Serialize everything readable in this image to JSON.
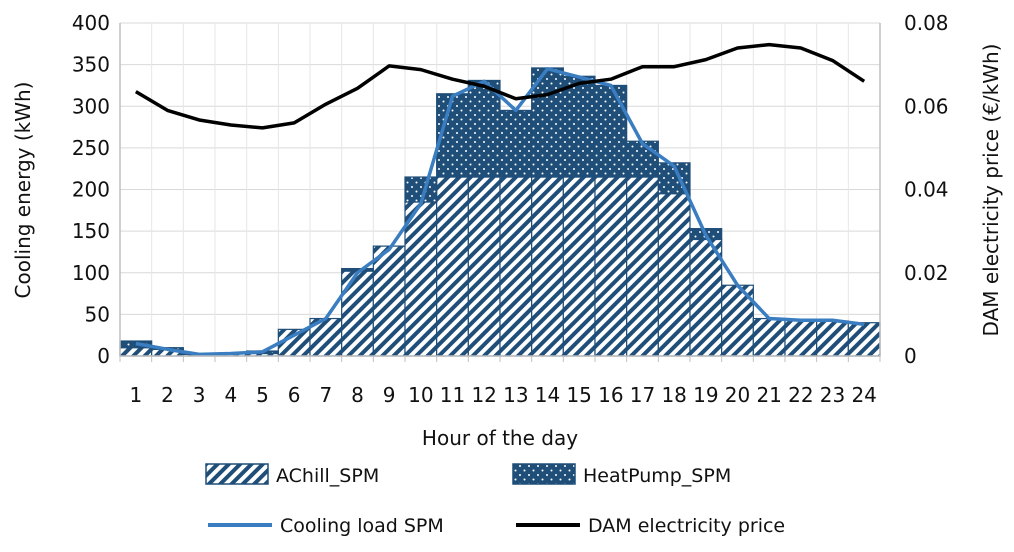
{
  "chart_data": {
    "type": "bar",
    "stacked": true,
    "title": "",
    "xlabel": "Hour of the day",
    "ylabel": "Cooling energy (kWh)",
    "y2label": "DAM electricity price (€/kWh)",
    "ylim": [
      0,
      400
    ],
    "y2lim": [
      0,
      0.08
    ],
    "yticks": [
      0,
      50,
      100,
      150,
      200,
      250,
      300,
      350,
      400
    ],
    "y2ticks": [
      "0",
      "0.02",
      "0.04",
      "0.06",
      "0.08"
    ],
    "grid": true,
    "categories": [
      "1",
      "2",
      "3",
      "4",
      "5",
      "6",
      "7",
      "8",
      "9",
      "10",
      "11",
      "12",
      "13",
      "14",
      "15",
      "16",
      "17",
      "18",
      "19",
      "20",
      "21",
      "22",
      "23",
      "24"
    ],
    "series": [
      {
        "name": "AChill_SPM",
        "kind": "bar",
        "axis": "left",
        "pattern": "diagonal-stripes",
        "color": "#1f4e79",
        "values": [
          10,
          8,
          2,
          3,
          3,
          32,
          45,
          102,
          132,
          185,
          215,
          215,
          215,
          215,
          215,
          215,
          215,
          195,
          140,
          85,
          45,
          43,
          42,
          40
        ]
      },
      {
        "name": "HeatPump_SPM",
        "kind": "bar",
        "axis": "left",
        "pattern": "dotted",
        "color": "#1f4e79",
        "values": [
          8,
          2,
          1,
          0,
          3,
          0,
          0,
          3,
          0,
          30,
          100,
          116,
          80,
          131,
          121,
          110,
          43,
          37,
          13,
          0,
          0,
          0,
          0,
          0
        ]
      },
      {
        "name": "Cooling load SPM",
        "kind": "line",
        "axis": "left",
        "color": "#3a7dc0",
        "values": [
          15,
          8,
          2,
          3,
          5,
          25,
          45,
          100,
          128,
          183,
          312,
          330,
          295,
          345,
          335,
          325,
          255,
          228,
          145,
          85,
          45,
          43,
          43,
          38
        ]
      },
      {
        "name": "DAM electricity price",
        "kind": "line",
        "axis": "right",
        "color": "#000000",
        "values": [
          0.0635,
          0.059,
          0.0567,
          0.0555,
          0.0548,
          0.056,
          0.0605,
          0.0643,
          0.0697,
          0.0688,
          0.0665,
          0.0648,
          0.0618,
          0.0628,
          0.0655,
          0.0665,
          0.0695,
          0.0695,
          0.0712,
          0.074,
          0.0748,
          0.074,
          0.071,
          0.066
        ]
      }
    ],
    "legend": {
      "position": "bottom",
      "entries": [
        "AChill_SPM",
        "HeatPump_SPM",
        "Cooling load SPM",
        "DAM electricity price"
      ]
    }
  }
}
